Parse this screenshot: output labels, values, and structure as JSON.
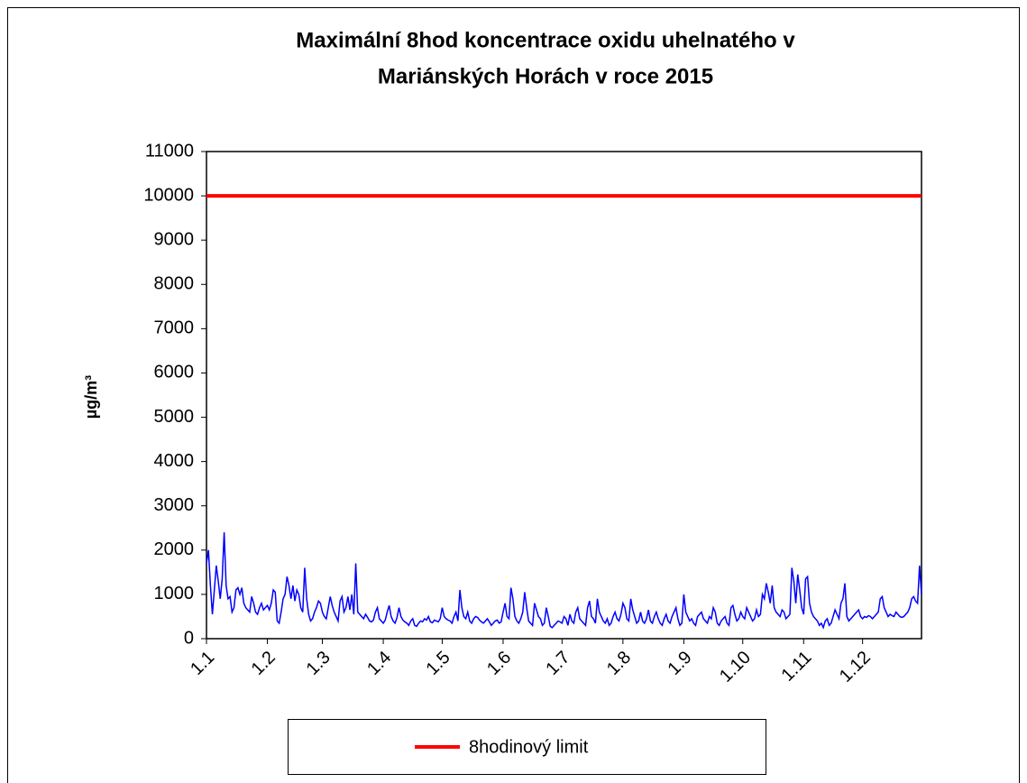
{
  "chart_data": {
    "type": "line",
    "title": [
      "Maximální 8hod koncentrace oxidu uhelnatého  v",
      "Mariánských Horách v roce 2015"
    ],
    "y_label": "µg/m³",
    "xlim": [
      1,
      365
    ],
    "xticks": [
      {
        "value": 1,
        "label": "1.1"
      },
      {
        "value": 32,
        "label": "1.2"
      },
      {
        "value": 60,
        "label": "1.3"
      },
      {
        "value": 91,
        "label": "1.4"
      },
      {
        "value": 121,
        "label": "1.5"
      },
      {
        "value": 152,
        "label": "1.6"
      },
      {
        "value": 182,
        "label": "1.7"
      },
      {
        "value": 213,
        "label": "1.8"
      },
      {
        "value": 244,
        "label": "1.9"
      },
      {
        "value": 274,
        "label": "1.10"
      },
      {
        "value": 305,
        "label": "1.11"
      },
      {
        "value": 335,
        "label": "1.12"
      }
    ],
    "ylim": [
      0,
      11000
    ],
    "yticks": [
      0,
      1000,
      2000,
      3000,
      4000,
      5000,
      6000,
      7000,
      8000,
      9000,
      10000,
      11000
    ],
    "grid": false,
    "limit": {
      "name": "8hodinový limit",
      "color": "#ff0000",
      "value": 10000
    },
    "series": [
      {
        "color": "#0000ff",
        "x": [
          1,
          2,
          3,
          4,
          5,
          6,
          7,
          8,
          9,
          10,
          11,
          12,
          13,
          14,
          15,
          16,
          17,
          18,
          19,
          20,
          21,
          22,
          23,
          24,
          25,
          26,
          27,
          28,
          29,
          30,
          31,
          32,
          33,
          34,
          35,
          36,
          37,
          38,
          39,
          40,
          41,
          42,
          43,
          44,
          45,
          46,
          47,
          48,
          49,
          50,
          51,
          52,
          53,
          54,
          55,
          56,
          57,
          58,
          59,
          60,
          61,
          62,
          63,
          64,
          65,
          66,
          67,
          68,
          69,
          70,
          71,
          72,
          73,
          74,
          75,
          76,
          77,
          78,
          79,
          80,
          81,
          82,
          83,
          84,
          85,
          86,
          87,
          88,
          89,
          90,
          91,
          92,
          93,
          94,
          95,
          96,
          97,
          98,
          99,
          100,
          101,
          102,
          103,
          104,
          105,
          106,
          107,
          108,
          109,
          110,
          111,
          112,
          113,
          114,
          115,
          116,
          117,
          118,
          119,
          120,
          121,
          122,
          123,
          124,
          125,
          126,
          127,
          128,
          129,
          130,
          131,
          132,
          133,
          134,
          135,
          136,
          137,
          138,
          139,
          140,
          141,
          142,
          143,
          144,
          145,
          146,
          147,
          148,
          149,
          150,
          151,
          152,
          153,
          154,
          155,
          156,
          157,
          158,
          159,
          160,
          161,
          162,
          163,
          164,
          165,
          166,
          167,
          168,
          169,
          170,
          171,
          172,
          173,
          174,
          175,
          176,
          177,
          178,
          179,
          180,
          181,
          182,
          183,
          184,
          185,
          186,
          187,
          188,
          189,
          190,
          191,
          192,
          193,
          194,
          195,
          196,
          197,
          198,
          199,
          200,
          201,
          202,
          203,
          204,
          205,
          206,
          207,
          208,
          209,
          210,
          211,
          212,
          213,
          214,
          215,
          216,
          217,
          218,
          219,
          220,
          221,
          222,
          223,
          224,
          225,
          226,
          227,
          228,
          229,
          230,
          231,
          232,
          233,
          234,
          235,
          236,
          237,
          238,
          239,
          240,
          241,
          242,
          243,
          244,
          245,
          246,
          247,
          248,
          249,
          250,
          251,
          252,
          253,
          254,
          255,
          256,
          257,
          258,
          259,
          260,
          261,
          262,
          263,
          264,
          265,
          266,
          267,
          268,
          269,
          270,
          271,
          272,
          273,
          274,
          275,
          276,
          277,
          278,
          279,
          280,
          281,
          282,
          283,
          284,
          285,
          286,
          287,
          288,
          289,
          290,
          291,
          292,
          293,
          294,
          295,
          296,
          297,
          298,
          299,
          300,
          301,
          302,
          303,
          304,
          305,
          306,
          307,
          308,
          309,
          310,
          311,
          312,
          313,
          314,
          315,
          316,
          317,
          318,
          319,
          320,
          321,
          322,
          323,
          324,
          325,
          326,
          327,
          328,
          329,
          330,
          331,
          332,
          333,
          334,
          335,
          336,
          337,
          338,
          339,
          340,
          341,
          342,
          343,
          344,
          345,
          346,
          347,
          348,
          349,
          350,
          351,
          352,
          353,
          354,
          355,
          356,
          357,
          358,
          359,
          360,
          361,
          362,
          363,
          364,
          365
        ],
        "values": [
          1700,
          2000,
          1200,
          550,
          1100,
          1650,
          1300,
          900,
          1350,
          2400,
          1200,
          900,
          950,
          600,
          700,
          1100,
          1150,
          1000,
          1150,
          800,
          700,
          650,
          600,
          950,
          800,
          600,
          550,
          700,
          800,
          650,
          700,
          750,
          650,
          800,
          1100,
          1050,
          400,
          350,
          600,
          900,
          1000,
          1400,
          1200,
          900,
          1200,
          850,
          1100,
          1000,
          700,
          600,
          1600,
          900,
          550,
          400,
          450,
          600,
          700,
          850,
          800,
          600,
          500,
          450,
          700,
          950,
          750,
          600,
          500,
          400,
          850,
          950,
          600,
          700,
          950,
          650,
          1000,
          550,
          1700,
          600,
          550,
          500,
          450,
          550,
          480,
          400,
          380,
          420,
          600,
          700,
          450,
          400,
          350,
          420,
          600,
          750,
          500,
          400,
          350,
          480,
          700,
          500,
          420,
          380,
          350,
          300,
          400,
          450,
          300,
          280,
          350,
          400,
          380,
          450,
          420,
          500,
          380,
          360,
          420,
          400,
          380,
          450,
          700,
          500,
          450,
          420,
          400,
          350,
          500,
          600,
          400,
          1100,
          700,
          500,
          450,
          600,
          400,
          350,
          450,
          500,
          480,
          420,
          380,
          350,
          400,
          450,
          380,
          300,
          350,
          400,
          420,
          350,
          380,
          600,
          800,
          500,
          450,
          1150,
          900,
          500,
          400,
          350,
          450,
          600,
          1050,
          700,
          400,
          350,
          300,
          800,
          650,
          500,
          450,
          300,
          350,
          700,
          500,
          280,
          250,
          300,
          350,
          400,
          380,
          350,
          500,
          450,
          300,
          550,
          400,
          350,
          600,
          700,
          450,
          400,
          350,
          300,
          700,
          850,
          500,
          450,
          350,
          900,
          600,
          500,
          400,
          350,
          450,
          300,
          350,
          500,
          600,
          450,
          400,
          550,
          800,
          700,
          450,
          400,
          900,
          650,
          500,
          350,
          400,
          600,
          400,
          350,
          450,
          650,
          400,
          350,
          500,
          600,
          450,
          350,
          300,
          450,
          550,
          400,
          350,
          500,
          600,
          700,
          450,
          300,
          350,
          1000,
          600,
          500,
          400,
          450,
          350,
          300,
          500,
          550,
          600,
          450,
          400,
          350,
          500,
          450,
          700,
          600,
          350,
          300,
          400,
          450,
          500,
          350,
          300,
          700,
          750,
          550,
          400,
          450,
          600,
          500,
          450,
          700,
          600,
          500,
          400,
          450,
          650,
          500,
          550,
          1000,
          900,
          1250,
          1050,
          800,
          1200,
          700,
          600,
          550,
          500,
          650,
          600,
          450,
          500,
          550,
          1600,
          1300,
          800,
          1450,
          1100,
          700,
          550,
          1350,
          1400,
          800,
          600,
          500,
          450,
          400,
          300,
          350,
          250,
          400,
          450,
          300,
          350,
          500,
          650,
          550,
          450,
          800,
          900,
          1250,
          500,
          400,
          450,
          500,
          550,
          600,
          650,
          500,
          450,
          500,
          480,
          520,
          500,
          450,
          500,
          550,
          600,
          900,
          950,
          700,
          600,
          500,
          550,
          520,
          500,
          600,
          550,
          500,
          480,
          500,
          550,
          600,
          700,
          900,
          950,
          850,
          800,
          1650,
          1000
        ]
      }
    ]
  }
}
